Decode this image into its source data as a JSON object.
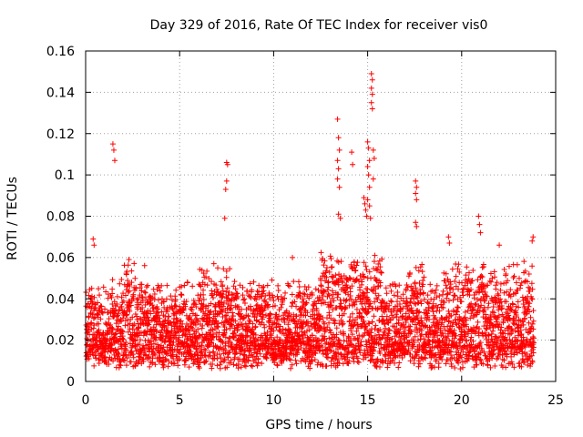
{
  "chart_data": {
    "type": "scatter",
    "title": "Day 329 of 2016, Rate Of TEC Index for receiver vis0",
    "xlabel": "GPS time / hours",
    "ylabel": "ROTI / TECUs",
    "xlim": [
      0,
      25
    ],
    "ylim": [
      0,
      0.16
    ],
    "x_ticks": [
      0,
      5,
      10,
      15,
      20,
      25
    ],
    "y_ticks": [
      0,
      0.02,
      0.04,
      0.06,
      0.08,
      0.1,
      0.12,
      0.14,
      0.16
    ],
    "x_tick_labels": [
      "0",
      "5",
      "10",
      "15",
      "20",
      "25"
    ],
    "y_tick_labels": [
      "0",
      "0.02",
      "0.04",
      "0.06",
      "0.08",
      "0.1",
      "0.12",
      "0.14",
      "0.16"
    ],
    "grid": true,
    "marker": "+",
    "color": "#ff0000",
    "series": [
      {
        "points": [
          [
            0.4,
            0.069
          ],
          [
            0.45,
            0.066
          ],
          [
            1.45,
            0.115
          ],
          [
            1.5,
            0.112
          ],
          [
            1.55,
            0.107
          ],
          [
            7.5,
            0.106
          ],
          [
            7.55,
            0.105
          ],
          [
            7.5,
            0.097
          ],
          [
            7.45,
            0.093
          ],
          [
            7.4,
            0.079
          ],
          [
            13.4,
            0.127
          ],
          [
            13.45,
            0.118
          ],
          [
            13.5,
            0.112
          ],
          [
            13.4,
            0.107
          ],
          [
            13.45,
            0.103
          ],
          [
            13.4,
            0.098
          ],
          [
            13.5,
            0.094
          ],
          [
            13.45,
            0.081
          ],
          [
            13.55,
            0.079
          ],
          [
            14.15,
            0.111
          ],
          [
            14.2,
            0.105
          ],
          [
            15.2,
            0.149
          ],
          [
            15.25,
            0.146
          ],
          [
            15.2,
            0.142
          ],
          [
            15.25,
            0.139
          ],
          [
            15.2,
            0.135
          ],
          [
            15.25,
            0.132
          ],
          [
            15.0,
            0.116
          ],
          [
            15.05,
            0.113
          ],
          [
            15.1,
            0.107
          ],
          [
            15.3,
            0.112
          ],
          [
            15.35,
            0.108
          ],
          [
            15.0,
            0.104
          ],
          [
            15.05,
            0.1
          ],
          [
            15.3,
            0.098
          ],
          [
            15.1,
            0.094
          ],
          [
            14.8,
            0.089
          ],
          [
            14.85,
            0.086
          ],
          [
            14.9,
            0.083
          ],
          [
            14.95,
            0.08
          ],
          [
            15.0,
            0.088
          ],
          [
            15.1,
            0.085
          ],
          [
            15.15,
            0.079
          ],
          [
            17.55,
            0.097
          ],
          [
            17.6,
            0.094
          ],
          [
            17.55,
            0.091
          ],
          [
            17.6,
            0.088
          ],
          [
            17.55,
            0.077
          ],
          [
            17.6,
            0.075
          ],
          [
            20.9,
            0.08
          ],
          [
            20.95,
            0.076
          ],
          [
            21.0,
            0.072
          ],
          [
            19.3,
            0.07
          ],
          [
            19.35,
            0.067
          ],
          [
            23.8,
            0.07
          ],
          [
            23.75,
            0.068
          ],
          [
            22.0,
            0.066
          ],
          [
            11.0,
            0.06
          ]
        ]
      }
    ]
  }
}
